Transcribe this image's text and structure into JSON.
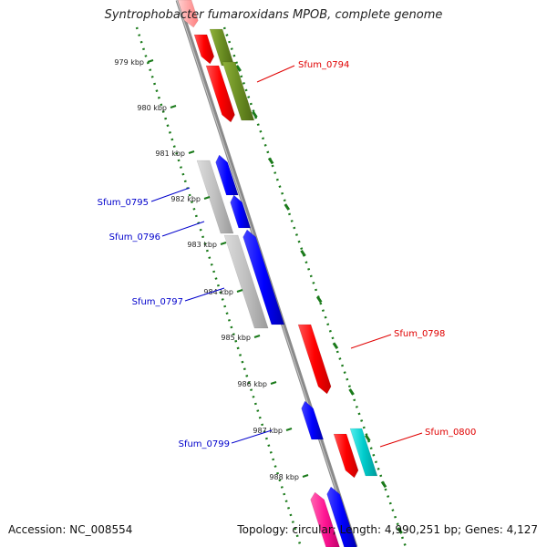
{
  "title": "Syntrophobacter fumaroxidans MPOB, complete genome",
  "footer": {
    "accession": "Accession: NC_008554",
    "summary": "Topology: circular; Length: 4,990,251 bp; Genes: 4,127"
  },
  "ruler": {
    "ticks": [
      "979 kbp",
      "980 kbp",
      "981 kbp",
      "982 kbp",
      "983 kbp",
      "984 kbp",
      "985 kbp",
      "986 kbp",
      "987 kbp",
      "988 kbp"
    ]
  },
  "gene_labels": [
    {
      "text": "Sfum_0794",
      "color": "#e00000"
    },
    {
      "text": "Sfum_0795",
      "color": "#0000cc"
    },
    {
      "text": "Sfum_0796",
      "color": "#0000cc"
    },
    {
      "text": "Sfum_0797",
      "color": "#0000cc"
    },
    {
      "text": "Sfum_0798",
      "color": "#e00000"
    },
    {
      "text": "Sfum_0799",
      "color": "#0000cc"
    },
    {
      "text": "Sfum_0800",
      "color": "#e00000"
    }
  ],
  "colors": {
    "backbone": "#8a8a8a",
    "ticks": "#1a7a1a",
    "red": "#ff0000",
    "blue": "#0000ff",
    "olive": "#6b8e23",
    "gray": "#c0c0c0",
    "cyan": "#00cccc",
    "magenta": "#ff1493"
  }
}
